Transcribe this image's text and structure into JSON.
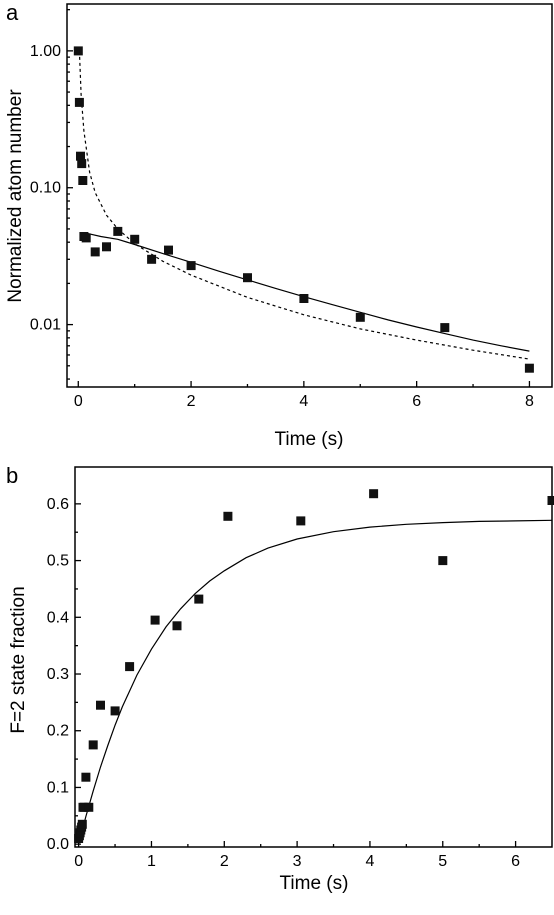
{
  "chart_data": [
    {
      "type": "scatter",
      "panel_label": "a",
      "xlabel": "Time (s)",
      "ylabel": "Normalized atom number",
      "xlim": [
        -0.2,
        8.4
      ],
      "ylim": [
        0.0035,
        2.2
      ],
      "yscale": "log",
      "xticks": [
        0,
        2,
        4,
        6,
        8
      ],
      "xtick_labels": [
        "0",
        "2",
        "4",
        "6",
        "8"
      ],
      "yticks": [
        1.0,
        0.1,
        0.01
      ],
      "ytick_labels": [
        "1.00",
        "0.10",
        "0.01"
      ],
      "legend": "none",
      "grid": false,
      "series": [
        {
          "kind": "points",
          "marker": "square",
          "x": [
            0,
            0.02,
            0.04,
            0.06,
            0.08,
            0.1,
            0.14,
            0.3,
            0.5,
            0.7,
            1.0,
            1.3,
            1.6,
            2.0,
            3.0,
            4.0,
            5.0,
            6.5,
            8.0
          ],
          "y": [
            1.0,
            0.42,
            0.17,
            0.15,
            0.113,
            0.044,
            0.043,
            0.034,
            0.037,
            0.048,
            0.042,
            0.03,
            0.035,
            0.027,
            0.022,
            0.0155,
            0.0113,
            0.0095,
            0.0048
          ]
        },
        {
          "kind": "line",
          "style": "solid",
          "x": [
            0.1,
            0.2,
            0.4,
            0.7,
            1.0,
            1.5,
            2.0,
            2.5,
            3.0,
            3.5,
            4.0,
            4.5,
            5.0,
            5.5,
            6.0,
            6.5,
            7.0,
            7.5,
            8.0
          ],
          "y": [
            0.047,
            0.046,
            0.044,
            0.042,
            0.0385,
            0.033,
            0.0285,
            0.0245,
            0.0212,
            0.0184,
            0.016,
            0.014,
            0.0123,
            0.0108,
            0.0096,
            0.0086,
            0.0077,
            0.007,
            0.0064
          ]
        },
        {
          "kind": "line",
          "style": "dashed",
          "x": [
            0.02,
            0.05,
            0.1,
            0.2,
            0.3,
            0.5,
            0.7,
            1.0,
            1.5,
            2.0,
            3.0,
            4.0,
            5.0,
            6.0,
            7.0,
            8.0
          ],
          "y": [
            1.0,
            0.48,
            0.26,
            0.13,
            0.092,
            0.063,
            0.05,
            0.039,
            0.029,
            0.023,
            0.0158,
            0.0118,
            0.0093,
            0.0077,
            0.0065,
            0.0056
          ]
        }
      ]
    },
    {
      "type": "scatter",
      "panel_label": "b",
      "xlabel": "Time (s)",
      "ylabel": "F=2 state fraction",
      "xlim": [
        -0.05,
        6.5
      ],
      "ylim": [
        -0.005,
        0.665
      ],
      "yscale": "linear",
      "xticks": [
        0,
        1,
        2,
        3,
        4,
        5,
        6
      ],
      "xtick_labels": [
        "0",
        "1",
        "2",
        "3",
        "4",
        "5",
        "6"
      ],
      "yticks": [
        0.0,
        0.1,
        0.2,
        0.3,
        0.4,
        0.5,
        0.6
      ],
      "ytick_labels": [
        "0.0",
        "0.1",
        "0.2",
        "0.3",
        "0.4",
        "0.5",
        "0.6"
      ],
      "legend": "none",
      "grid": false,
      "series": [
        {
          "kind": "points",
          "marker": "square",
          "x": [
            0,
            0.01,
            0.02,
            0.03,
            0.04,
            0.05,
            0.06,
            0.08,
            0.1,
            0.14,
            0.2,
            0.3,
            0.5,
            0.7,
            1.05,
            1.35,
            1.65,
            2.05,
            3.05,
            4.05,
            5.0,
            6.5
          ],
          "y": [
            0.01,
            0.015,
            0.02,
            0.025,
            0.03,
            0.035,
            0.065,
            0.065,
            0.118,
            0.065,
            0.175,
            0.245,
            0.235,
            0.313,
            0.395,
            0.385,
            0.432,
            0.578,
            0.57,
            0.618,
            0.5,
            0.606
          ]
        },
        {
          "kind": "line",
          "style": "solid",
          "x": [
            0,
            0.1,
            0.2,
            0.3,
            0.4,
            0.5,
            0.6,
            0.8,
            1.0,
            1.2,
            1.4,
            1.6,
            1.8,
            2.0,
            2.3,
            2.6,
            3.0,
            3.5,
            4.0,
            4.5,
            5.0,
            5.5,
            6.0,
            6.5
          ],
          "y": [
            0.0,
            0.049,
            0.094,
            0.136,
            0.174,
            0.21,
            0.242,
            0.298,
            0.344,
            0.383,
            0.415,
            0.442,
            0.464,
            0.482,
            0.505,
            0.522,
            0.538,
            0.551,
            0.559,
            0.564,
            0.567,
            0.569,
            0.57,
            0.571
          ]
        }
      ]
    }
  ]
}
